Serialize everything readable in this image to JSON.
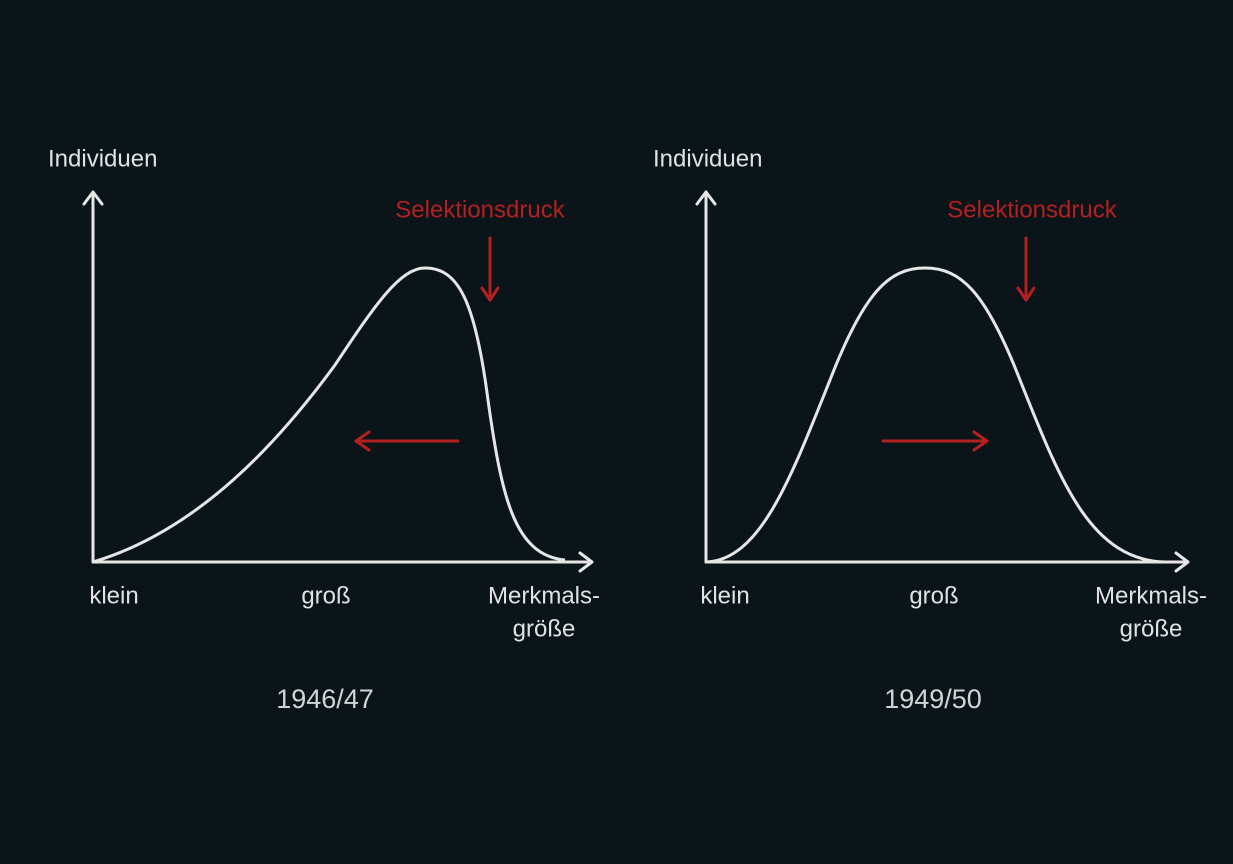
{
  "panels": [
    {
      "y_axis_label": "Individuen",
      "annotation": "Selektionsdruck",
      "x_labels": [
        "klein",
        "groß"
      ],
      "x_axis_label": [
        "Merkmals-",
        "größe"
      ],
      "caption": "1946/47"
    },
    {
      "y_axis_label": "Individuen",
      "annotation": "Selektionsdruck",
      "x_labels": [
        "klein",
        "groß"
      ],
      "x_axis_label": [
        "Merkmals-",
        "größe"
      ],
      "caption": "1949/50"
    }
  ]
}
